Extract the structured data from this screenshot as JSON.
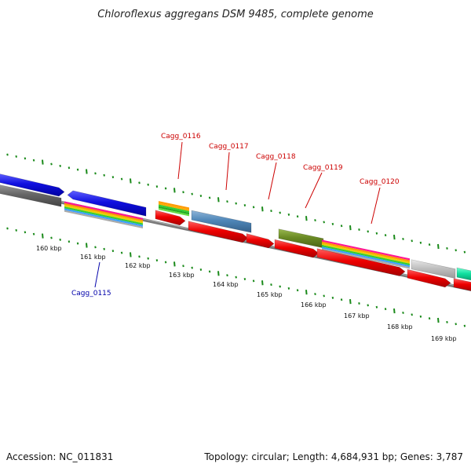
{
  "title": "Chloroflexus aggregans DSM 9485, complete genome",
  "footer": {
    "accession": "Accession: NC_011831",
    "summary": "Topology: circular; Length: 4,684,931 bp; Genes: 3,787"
  },
  "scale": {
    "tick_labels": [
      "160 kbp",
      "161 kbp",
      "162 kbp",
      "163 kbp",
      "164 kbp",
      "165 kbp",
      "166 kbp",
      "167 kbp",
      "168 kbp",
      "169 kbp"
    ]
  },
  "gene_labels": {
    "above": [
      "Cagg_0116",
      "Cagg_0117",
      "Cagg_0118",
      "Cagg_0119",
      "Cagg_0120"
    ],
    "below": [
      "Cagg_0115"
    ]
  },
  "colors": {
    "backbone": "#888888",
    "tick": "#1a8a1a",
    "cds_forward": "#e00000",
    "cds_blue": "#1010e0",
    "cds_gray": "#666666",
    "cds_steel": "#4f86b8",
    "cds_olive": "#6a8a24",
    "cds_lightgray": "#c0c0c0",
    "cds_teal": "#10e0a0",
    "label_top": "#cc0000",
    "label_bottom": "#0000aa"
  }
}
